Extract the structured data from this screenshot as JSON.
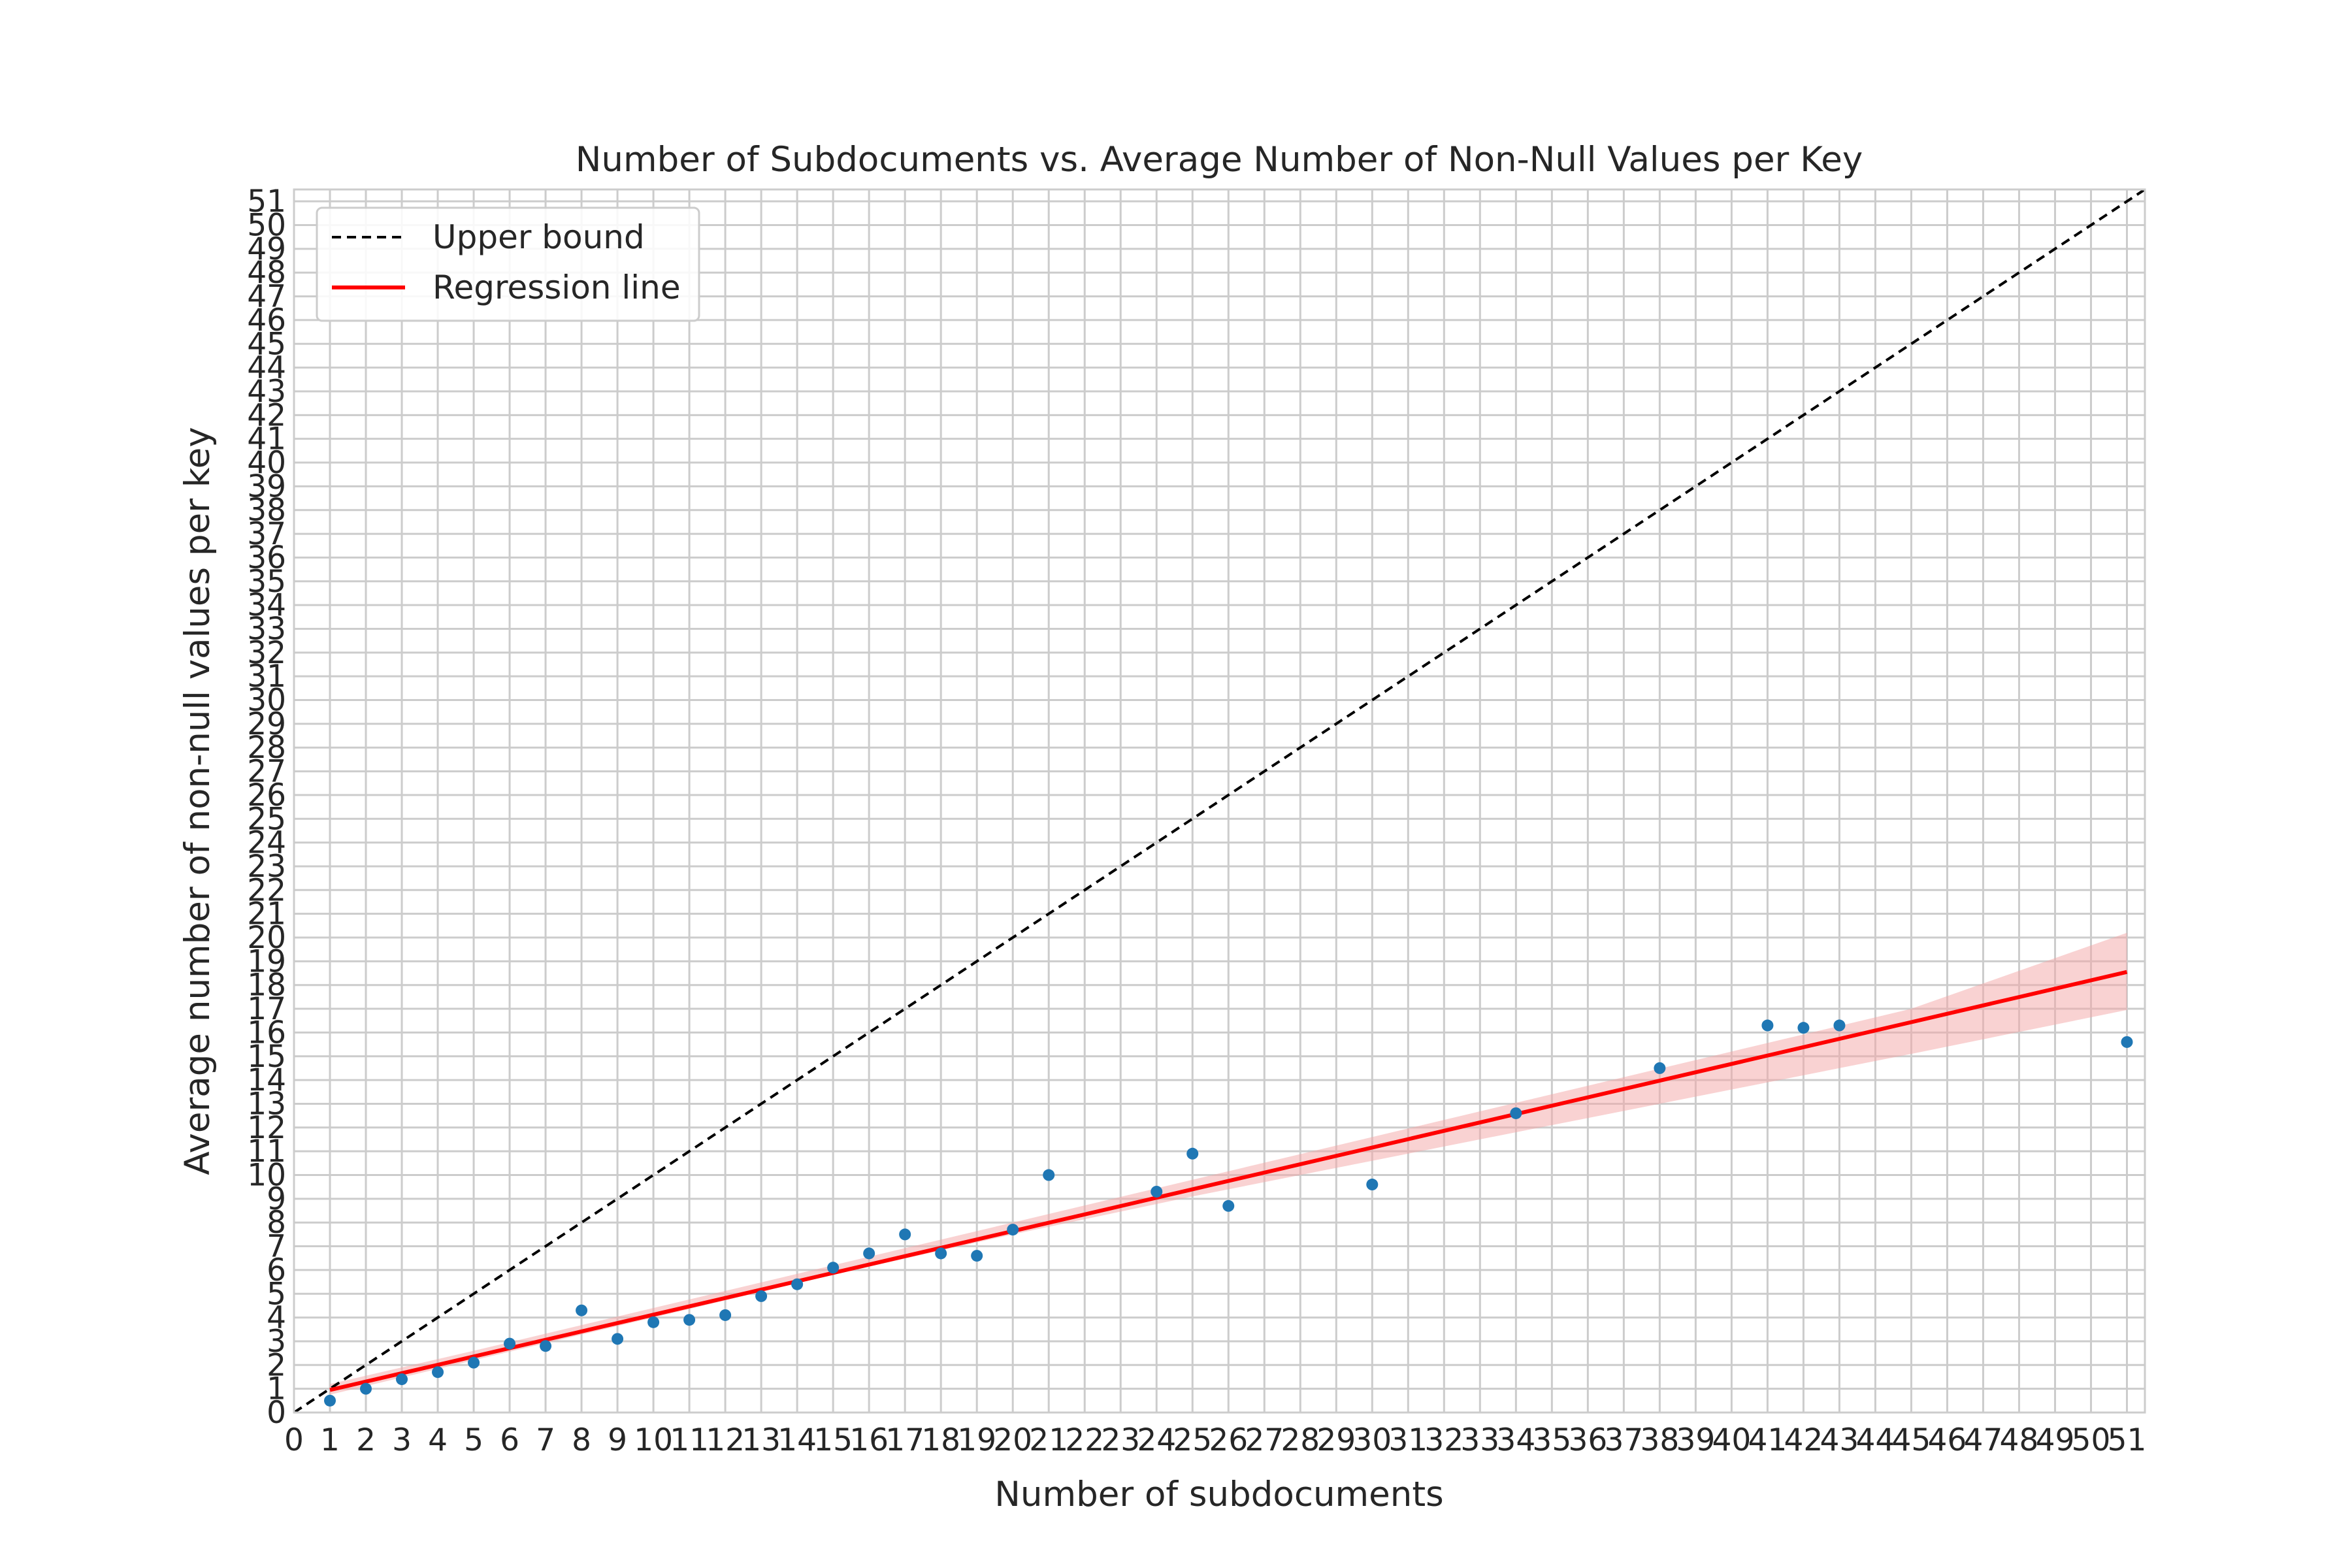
{
  "chart_data": {
    "type": "scatter",
    "title": "Number of Subdocuments vs. Average Number of Non-Null Values per Key",
    "xlabel": "Number of subdocuments",
    "ylabel": "Average number of non-null values per key",
    "xlim": [
      0,
      51.5
    ],
    "ylim": [
      0,
      51.5
    ],
    "xticks": [
      0,
      1,
      2,
      3,
      4,
      5,
      6,
      7,
      8,
      9,
      10,
      11,
      12,
      13,
      14,
      15,
      16,
      17,
      18,
      19,
      20,
      21,
      22,
      23,
      24,
      25,
      26,
      27,
      28,
      29,
      30,
      31,
      32,
      33,
      34,
      35,
      36,
      37,
      38,
      39,
      40,
      41,
      42,
      43,
      44,
      45,
      46,
      47,
      48,
      49,
      50,
      51
    ],
    "yticks": [
      0,
      1,
      2,
      3,
      4,
      5,
      6,
      7,
      8,
      9,
      10,
      11,
      12,
      13,
      14,
      15,
      16,
      17,
      18,
      19,
      20,
      21,
      22,
      23,
      24,
      25,
      26,
      27,
      28,
      29,
      30,
      31,
      32,
      33,
      34,
      35,
      36,
      37,
      38,
      39,
      40,
      41,
      42,
      43,
      44,
      45,
      46,
      47,
      48,
      49,
      50,
      51
    ],
    "grid": true,
    "legend_position": "top-left",
    "series": [
      {
        "kind": "scatter",
        "color": "#1f77b4",
        "points": [
          [
            1,
            0.5
          ],
          [
            2,
            1.0
          ],
          [
            3,
            1.4
          ],
          [
            4,
            1.7
          ],
          [
            5,
            2.1
          ],
          [
            6,
            2.9
          ],
          [
            7,
            2.8
          ],
          [
            8,
            4.3
          ],
          [
            9,
            3.1
          ],
          [
            10,
            3.8
          ],
          [
            11,
            3.9
          ],
          [
            12,
            4.1
          ],
          [
            13,
            4.9
          ],
          [
            14,
            5.4
          ],
          [
            15,
            6.1
          ],
          [
            16,
            6.7
          ],
          [
            17,
            7.5
          ],
          [
            18,
            6.7
          ],
          [
            19,
            6.6
          ],
          [
            20,
            7.7
          ],
          [
            21,
            10.0
          ],
          [
            24,
            9.3
          ],
          [
            25,
            10.9
          ],
          [
            26,
            8.7
          ],
          [
            30,
            9.6
          ],
          [
            34,
            12.6
          ],
          [
            38,
            14.5
          ],
          [
            41,
            16.3
          ],
          [
            42,
            16.2
          ],
          [
            43,
            16.3
          ],
          [
            51,
            15.6
          ]
        ]
      },
      {
        "name": "Upper bound",
        "kind": "line",
        "style": "dashed",
        "color": "#000000",
        "x": [
          0,
          51.5
        ],
        "y": [
          0,
          51.5
        ]
      },
      {
        "name": "Regression line",
        "kind": "line",
        "color": "#ff0000",
        "x": [
          1,
          51
        ],
        "y": [
          0.95,
          18.55
        ]
      },
      {
        "kind": "band",
        "color": "#f4a5a5",
        "x": [
          1,
          5,
          10,
          15,
          20,
          25,
          30,
          35,
          40,
          45,
          51
        ],
        "lower": [
          0.75,
          2.2,
          4.0,
          5.8,
          7.5,
          9.1,
          10.6,
          12.1,
          13.6,
          15.1,
          16.95
        ],
        "upper": [
          1.2,
          2.6,
          4.4,
          6.2,
          8.0,
          9.8,
          11.6,
          13.4,
          15.2,
          17.0,
          20.2
        ]
      }
    ]
  }
}
